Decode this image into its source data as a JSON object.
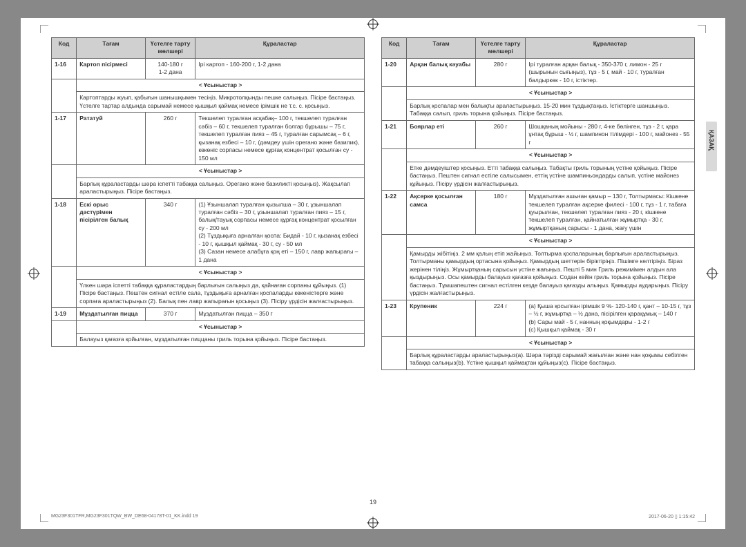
{
  "side_tab": "ҚАЗАҚ",
  "page_number": "19",
  "footer_left": "MG23F301TFR,MG23F301TQW_BW_DE68-04178T-01_KK.indd   19",
  "footer_right": "2017-06-20   ▯ 1:15:42",
  "headers": {
    "code": "Код",
    "food": "Тағам",
    "amount": "Үстелге тарту мөлшері",
    "ingredients": "Құраластар"
  },
  "hint_label": "< Ұсыныстар >",
  "left": [
    {
      "code": "1-16",
      "food": "Картоп пісірмесі",
      "amount": "140-180 г\n1-2 дана",
      "ing": "Ірі картоп - 160-200 г, 1-2 дана",
      "hint": "Картоптарды жуып, қабығын шанышқымен тесіңіз. Микротолқынды пешке салыңыз. Пісіре бастаңыз. Үстелге тартар алдында сарымай немесе қышқыл қаймақ немесе ірімшік не т.с. с. қосыңыз."
    },
    {
      "code": "1-17",
      "food": "Рататуй",
      "amount": "260 г",
      "ing": "Текшелеп туралған асқабақ– 100 г, текшелеп туралған сәбіз – 60 г, текшелеп туралған болгар бұрышы – 75 г, текшелеп туралған пияз – 45 г, туралған сарымсақ – 6 г, қызанақ езбесі – 10 г, (дәмдеу үшін орегано және базилик), көкөніс сорпасы немесе құрғақ концентрат қосылған су - 150 мл",
      "hint": "Барлық құраластарды шәра іспетті табаққа салыңыз. Орегано және базиликті қосыңыз). Жақсылап араластырыңыз. Пісіре бастаңыз."
    },
    {
      "code": "1-18",
      "food": "Ескі орыс дәстүрімен пісірілген балық",
      "amount": "340 г",
      "ing": "(1)  Ұзыншалап туралған қызылша – 30 г, ұзыншалап туралған сәбіз – 30 г, ұзыншалап туралған пияз – 15 г, балық/тауық сорпасы немесе құрғақ концентрат қосылған су - 200 мл\n(2)  Тұздықыға арналған қоспа: Бидай - 10 г, қызанақ езбесі - 10 г, қышқыл қаймақ - 30 г, су - 50 мл\n(3)  Сазан немесе алабұға қоң еті – 150 г, лавр жапырағы – 1 дана",
      "hint": "Үлкен шәра іспетті табаққа құраластардың барлығын салыңыз да, қайнаған сорпаны құйыңыз. (1) Пісіре бастаңыз. Пештен сигнал естіле сала, тұздықыға арналған қоспаларды көкеністерге және сорпаға араластырыңыз (2). Балық пен лавр жапырағын қосыңыз (3). Пісіру үрдісін жалғастырыңыз."
    },
    {
      "code": "1-19",
      "food": "Мұздатылған пицца",
      "amount": "370 г",
      "ing": "Мұздатылған пицца – 350 г",
      "hint": "Балауыз қағазға қойылған, мұздатылған пиццаны гриль торына қойыңыз. Пісіре бастаңыз."
    }
  ],
  "right": [
    {
      "code": "1-20",
      "food": "Арқан балық кәуабы",
      "amount": "280 г",
      "ing": "Ірі туралған арқан балық - 350-370 г, лимон - 25 г (шырынын сығыңыз), тұз - 5 г, май - 10 г, туралған балдыркөк - 10 г, істіктер.",
      "hint": "Барлық қоспалар мен балықты араластырыңыз. 15-20 мин тұздықтаңыз. Істіктерге шаншыңыз. Табаққа салып, гриль торына қойыңыз. Пісіре бастаңыз."
    },
    {
      "code": "1-21",
      "food": "Боярлар еті",
      "amount": "260 г",
      "ing": "Шошқаның мойыны - 280 г, 4-ке бөлінген, тұз - 2 г, қара ұнтақ бұрыш - ½ г, шампинон тілімдері - 100 г, майонез - 55 г",
      "hint": "Етке дәмдеуіштер қосыңыз. Етті табаққа салыңыз. Табақты гриль торының үстіне қойыңыз. Пісіре бастаңыз. Пештен сигнал естіле салысымен, еттің үстіне шампиньондарды салып, үстіне майонез құйыңыз. Пісіру үрдісін жалғастырыңыз."
    },
    {
      "code": "1-22",
      "food": "Ақсерке қосылған самса",
      "amount": "180 г",
      "ing": "Мұздатылған ашыған қамыр – 130 г, Толтырмасы: Кішкене текшелеп туралған ақсерке филесі - 100 г, тұз - 1 г, табаға қуырылған, текшелеп туралған пияз - 20 г, кішкене текшелеп туралған, қайнатылған жұмыртқа - 30 г, жұмыртқаның сарысы - 1 дана, жағу үшін",
      "hint": "Қамырды жібітіңіз. 2 мм қалың етіп жайыңыз. Толтырма қоспаларының барлығын араластырыңыз. Толтырманы қамырдың ортасына қойыңыз. Қамырдың шеттерін біріктіріңіз. Пішімге келтіріңіз. Біраз жерінен тіліңіз. Жұмыртқаның сарысын үстіне жағыңыз. Пешті 5 мин Гриль режимімен алдын ала қыздырыңыз. Осы қамырды балауыз қағазға қойыңыз. Содан кейін гриль торына қойыңыз. Пісіре бастаңыз. Тұмшапештен сигнал естілген кезде балауыз қағазды алыңыз. Қамырды аударыңыз. Пісіру үрдісін жалғастырыңыз."
    },
    {
      "code": "1-23",
      "food": "Крупеник",
      "amount": "224 г",
      "ing": "(a)  Қыша қосылған ірімшік 9 %- 120-140 г, қант – 10-15 г, тұз – ½ г, жұмыртқа – ½ дана, пісірілген қарақұмық – 140 г\n(b)  Сары май - 5 г, нанның қоқымдары - 1-2 г\n(c)  Қышқыл қаймақ - 30 г",
      "hint": "Барлық құраластарды араластырыңыз(a). Шәра тәрізді сарымай жағылған және нан қоқымы себілген табаққа салыңыз(b). Үстіне қышқыл қаймақтан құйыңыз(c). Пісіре бастаңыз."
    }
  ]
}
